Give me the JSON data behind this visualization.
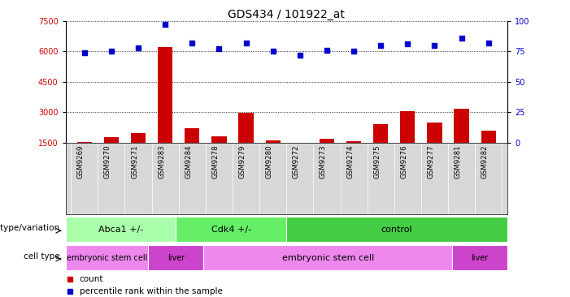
{
  "title": "GDS434 / 101922_at",
  "samples": [
    "GSM9269",
    "GSM9270",
    "GSM9271",
    "GSM9283",
    "GSM9284",
    "GSM9278",
    "GSM9279",
    "GSM9280",
    "GSM9272",
    "GSM9273",
    "GSM9274",
    "GSM9275",
    "GSM9276",
    "GSM9277",
    "GSM9281",
    "GSM9282"
  ],
  "counts": [
    1530,
    1750,
    1950,
    6200,
    2200,
    1800,
    2950,
    1600,
    1480,
    1680,
    1580,
    2400,
    3050,
    2500,
    3150,
    2100
  ],
  "percentiles": [
    74,
    75,
    78,
    97,
    82,
    77,
    82,
    75,
    72,
    76,
    75,
    80,
    81,
    80,
    86,
    82
  ],
  "ylim_left": [
    1500,
    7500
  ],
  "ylim_right": [
    0,
    100
  ],
  "yticks_left": [
    1500,
    3000,
    4500,
    6000,
    7500
  ],
  "yticks_right": [
    0,
    25,
    50,
    75,
    100
  ],
  "bar_color": "#cc0000",
  "dot_color": "#0000cc",
  "genotype_groups": [
    {
      "label": "Abca1 +/-",
      "start": 0,
      "end": 4,
      "color": "#aaffaa"
    },
    {
      "label": "Cdk4 +/-",
      "start": 4,
      "end": 8,
      "color": "#66ee66"
    },
    {
      "label": "control",
      "start": 8,
      "end": 16,
      "color": "#44cc44"
    }
  ],
  "celltype_groups": [
    {
      "label": "embryonic stem cell",
      "start": 0,
      "end": 3,
      "color": "#ee88ee"
    },
    {
      "label": "liver",
      "start": 3,
      "end": 5,
      "color": "#cc44cc"
    },
    {
      "label": "embryonic stem cell",
      "start": 5,
      "end": 14,
      "color": "#ee88ee"
    },
    {
      "label": "liver",
      "start": 14,
      "end": 16,
      "color": "#cc44cc"
    }
  ],
  "legend_count_color": "#cc0000",
  "legend_pct_color": "#0000cc",
  "background_color": "#ffffff",
  "grid_color": "#000000",
  "title_fontsize": 10,
  "tick_fontsize": 7,
  "label_fontsize": 7.5,
  "row_label_fontsize": 7.5,
  "geno_fontsize": 8,
  "cell_fontsize": 7
}
